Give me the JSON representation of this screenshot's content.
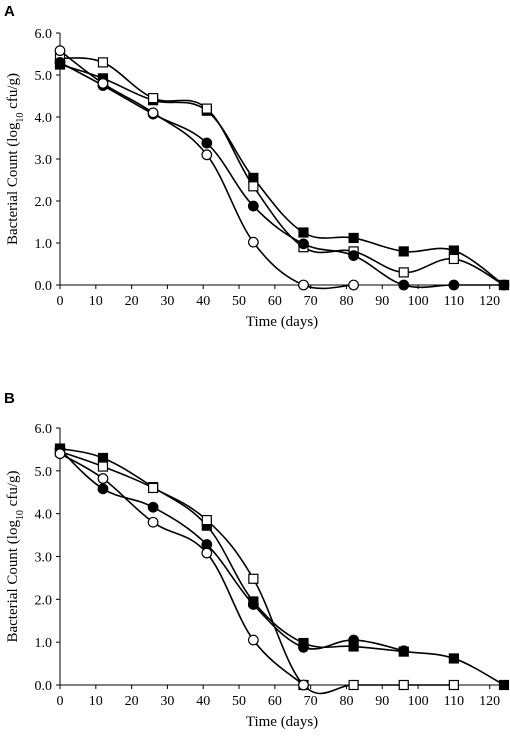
{
  "chart_data": [
    {
      "type": "line",
      "panel_label": "A",
      "xlabel": "Time (days)",
      "ylabel_parts": [
        "Bacterial Count (log",
        "10",
        " cfu/g)"
      ],
      "xlim": [
        0,
        124
      ],
      "ylim": [
        0,
        6
      ],
      "xticks": [
        "0",
        "10",
        "20",
        "30",
        "40",
        "50",
        "60",
        "70",
        "80",
        "90",
        "100",
        "110",
        "120"
      ],
      "yticks": [
        "0.0",
        "1.0",
        "2.0",
        "3.0",
        "4.0",
        "5.0",
        "6.0"
      ],
      "grid": false,
      "series": [
        {
          "marker": "filled-square",
          "x": [
            0,
            12,
            26,
            41,
            54,
            68,
            82,
            96,
            110,
            124
          ],
          "y": [
            5.25,
            4.92,
            4.4,
            4.15,
            2.55,
            1.25,
            1.12,
            0.8,
            0.82,
            0.0
          ]
        },
        {
          "marker": "open-square",
          "x": [
            0,
            12,
            26,
            41,
            54,
            68,
            82,
            96,
            110,
            124
          ],
          "y": [
            5.4,
            5.3,
            4.45,
            4.2,
            2.35,
            0.9,
            0.8,
            0.3,
            0.62,
            0.0
          ]
        },
        {
          "marker": "filled-circle",
          "x": [
            0,
            12,
            26,
            41,
            54,
            68,
            82,
            96,
            110,
            124
          ],
          "y": [
            5.3,
            4.75,
            4.07,
            3.38,
            1.88,
            0.98,
            0.7,
            0.0,
            0.0,
            0.0
          ]
        },
        {
          "marker": "open-circle",
          "x": [
            0,
            12,
            26,
            41,
            54,
            68,
            82
          ],
          "y": [
            5.58,
            4.8,
            4.1,
            3.1,
            1.02,
            0.0,
            0.0
          ]
        }
      ]
    },
    {
      "type": "line",
      "panel_label": "B",
      "xlabel": "Time (days)",
      "ylabel_parts": [
        "Bacterial Count (log",
        "10",
        " cfu/g)"
      ],
      "xlim": [
        0,
        124
      ],
      "ylim": [
        0,
        6
      ],
      "xticks": [
        "0",
        "10",
        "20",
        "30",
        "40",
        "50",
        "60",
        "70",
        "80",
        "90",
        "100",
        "110",
        "120"
      ],
      "yticks": [
        "0.0",
        "1.0",
        "2.0",
        "3.0",
        "4.0",
        "5.0",
        "6.0"
      ],
      "grid": false,
      "series": [
        {
          "marker": "filled-square",
          "x": [
            0,
            12,
            26,
            41,
            54,
            68,
            82,
            96,
            110,
            124
          ],
          "y": [
            5.52,
            5.3,
            4.62,
            3.72,
            1.95,
            0.98,
            0.9,
            0.78,
            0.62,
            0.0
          ]
        },
        {
          "marker": "open-square",
          "x": [
            0,
            12,
            26,
            41,
            54,
            68,
            82,
            96,
            110
          ],
          "y": [
            5.45,
            5.1,
            4.6,
            3.85,
            2.48,
            0.0,
            0.0,
            0.0,
            0.0
          ]
        },
        {
          "marker": "filled-circle",
          "x": [
            0,
            12,
            26,
            41,
            54,
            68,
            82,
            96
          ],
          "y": [
            5.5,
            4.58,
            4.15,
            3.28,
            1.88,
            0.88,
            1.05,
            0.8
          ]
        },
        {
          "marker": "open-circle",
          "x": [
            0,
            12,
            26,
            41,
            54,
            68
          ],
          "y": [
            5.4,
            4.82,
            3.8,
            3.08,
            1.05,
            0.0
          ]
        }
      ]
    }
  ]
}
